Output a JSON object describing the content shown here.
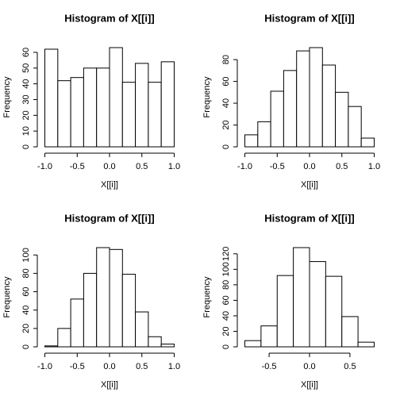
{
  "chart_data": [
    {
      "type": "histogram",
      "title": "Histogram of X[[i]]",
      "x_label": "X[[i]]",
      "y_label": "Frequency",
      "bins": [
        -1.0,
        -0.8,
        -0.6,
        -0.4,
        -0.2,
        0.0,
        0.2,
        0.4,
        0.6,
        0.8,
        1.0
      ],
      "values": [
        62,
        42,
        44,
        50,
        50,
        63,
        41,
        53,
        41,
        54
      ],
      "xlim": [
        -1,
        1
      ],
      "ylim": [
        0,
        63
      ],
      "xticks": [
        {
          "value": -1,
          "label": "-1.0"
        },
        -0.5,
        {
          "value": 0,
          "label": "0.0"
        },
        0.5,
        {
          "value": 1,
          "label": "1.0"
        }
      ],
      "yticks": [
        0,
        10,
        20,
        30,
        40,
        50,
        60
      ]
    },
    {
      "type": "histogram",
      "title": "Histogram of X[[i]]",
      "x_label": "X[[i]]",
      "y_label": "Frequency",
      "bins": [
        -1.0,
        -0.8,
        -0.6,
        -0.4,
        -0.2,
        0.0,
        0.2,
        0.4,
        0.6,
        0.8,
        1.0
      ],
      "values": [
        11,
        23,
        51,
        70,
        88,
        91,
        75,
        50,
        37,
        8
      ],
      "xlim": [
        -1,
        1
      ],
      "ylim": [
        0,
        91
      ],
      "xticks": [
        {
          "value": -1,
          "label": "-1.0"
        },
        -0.5,
        {
          "value": 0,
          "label": "0.0"
        },
        0.5,
        {
          "value": 1,
          "label": "1.0"
        }
      ],
      "yticks": [
        0,
        20,
        40,
        60,
        80
      ]
    },
    {
      "type": "histogram",
      "title": "Histogram of X[[i]]",
      "x_label": "X[[i]]",
      "y_label": "Frequency",
      "bins": [
        -1.0,
        -0.8,
        -0.6,
        -0.4,
        -0.2,
        0.0,
        0.2,
        0.4,
        0.6,
        0.8,
        1.0
      ],
      "values": [
        1,
        20,
        52,
        80,
        108,
        106,
        79,
        38,
        11,
        3
      ],
      "xlim": [
        -1,
        1
      ],
      "ylim": [
        0,
        108
      ],
      "xticks": [
        {
          "value": -1,
          "label": "-1.0"
        },
        -0.5,
        {
          "value": 0,
          "label": "0.0"
        },
        0.5,
        {
          "value": 1,
          "label": "1.0"
        }
      ],
      "yticks": [
        0,
        20,
        40,
        60,
        80,
        100
      ]
    },
    {
      "type": "histogram",
      "title": "Histogram of X[[i]]",
      "x_label": "X[[i]]",
      "y_label": "Frequency",
      "bins": [
        -0.8,
        -0.6,
        -0.4,
        -0.2,
        0.0,
        0.2,
        0.4,
        0.6,
        0.8
      ],
      "values": [
        8,
        27,
        92,
        128,
        110,
        91,
        39,
        6
      ],
      "xlim": [
        -0.8,
        0.8
      ],
      "ylim": [
        0,
        128
      ],
      "xticks": [
        -0.5,
        {
          "value": 0,
          "label": "0.0"
        },
        0.5
      ],
      "yticks": [
        0,
        20,
        40,
        60,
        80,
        100,
        120
      ]
    }
  ]
}
